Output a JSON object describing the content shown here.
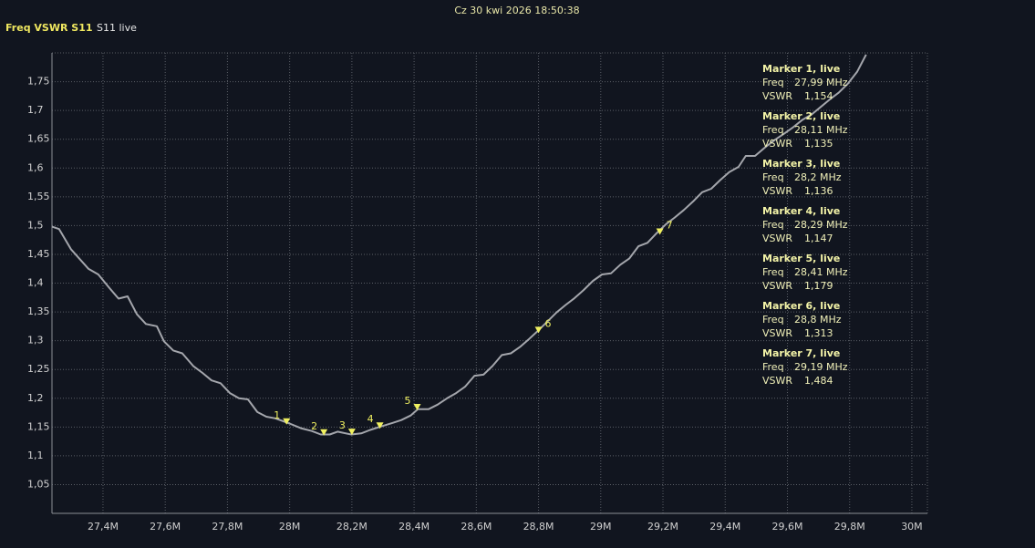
{
  "header": {
    "datetime": "Cz 30 kwi 2026 18:50:38"
  },
  "chart_data": {
    "type": "line",
    "title": "Freq VSWR S11",
    "subtitle": "S11 live",
    "xlim": [
      27.236,
      30.05
    ],
    "ylim": [
      1.0,
      1.8
    ],
    "xticks": [
      {
        "value": 27.4,
        "label": "27,4M"
      },
      {
        "value": 27.6,
        "label": "27,6M"
      },
      {
        "value": 27.8,
        "label": "27,8M"
      },
      {
        "value": 28,
        "label": "28M"
      },
      {
        "value": 28.2,
        "label": "28,2M"
      },
      {
        "value": 28.4,
        "label": "28,4M"
      },
      {
        "value": 28.6,
        "label": "28,6M"
      },
      {
        "value": 28.8,
        "label": "28,8M"
      },
      {
        "value": 29,
        "label": "29M"
      },
      {
        "value": 29.2,
        "label": "29,2M"
      },
      {
        "value": 29.4,
        "label": "29,4M"
      },
      {
        "value": 29.6,
        "label": "29,6M"
      },
      {
        "value": 29.8,
        "label": "29,8M"
      },
      {
        "value": 30,
        "label": "30M"
      }
    ],
    "yticks": [
      {
        "value": 1.05,
        "label": "1,05"
      },
      {
        "value": 1.1,
        "label": "1,1"
      },
      {
        "value": 1.15,
        "label": "1,15"
      },
      {
        "value": 1.2,
        "label": "1,2"
      },
      {
        "value": 1.25,
        "label": "1,25"
      },
      {
        "value": 1.3,
        "label": "1,3"
      },
      {
        "value": 1.35,
        "label": "1,35"
      },
      {
        "value": 1.4,
        "label": "1,4"
      },
      {
        "value": 1.45,
        "label": "1,45"
      },
      {
        "value": 1.5,
        "label": "1,5"
      },
      {
        "value": 1.55,
        "label": "1,55"
      },
      {
        "value": 1.6,
        "label": "1,6"
      },
      {
        "value": 1.65,
        "label": "1,65"
      },
      {
        "value": 1.7,
        "label": "1,7"
      },
      {
        "value": 1.75,
        "label": "1,75"
      }
    ],
    "grid": true,
    "x": [
      27.236,
      27.259,
      27.297,
      27.353,
      27.385,
      27.42,
      27.45,
      27.479,
      27.509,
      27.538,
      27.573,
      27.596,
      27.626,
      27.655,
      27.69,
      27.72,
      27.749,
      27.778,
      27.808,
      27.837,
      27.866,
      27.896,
      27.925,
      27.954,
      28.0,
      28.036,
      28.071,
      28.1,
      28.129,
      28.154,
      28.198,
      28.23,
      28.259,
      28.294,
      28.33,
      28.359,
      28.389,
      28.412,
      28.447,
      28.476,
      28.506,
      28.535,
      28.564,
      28.594,
      28.623,
      28.652,
      28.682,
      28.711,
      28.74,
      28.77,
      28.802,
      28.828,
      28.858,
      28.887,
      28.916,
      28.945,
      28.975,
      29.004,
      29.033,
      29.063,
      29.092,
      29.121,
      29.15,
      29.18,
      29.209,
      29.238,
      29.267,
      29.297,
      29.326,
      29.355,
      29.384,
      29.413,
      29.443,
      29.466,
      29.496,
      29.531,
      29.56,
      29.59,
      29.619,
      29.649,
      29.678,
      29.707,
      29.736,
      29.765,
      29.795,
      29.824,
      29.853
    ],
    "series": [
      {
        "name": "S11",
        "color": "#a4a6ac",
        "values": [
          1.498,
          1.494,
          1.459,
          1.425,
          1.415,
          1.392,
          1.373,
          1.377,
          1.346,
          1.329,
          1.325,
          1.299,
          1.283,
          1.278,
          1.256,
          1.244,
          1.231,
          1.226,
          1.209,
          1.2,
          1.198,
          1.176,
          1.168,
          1.165,
          1.156,
          1.148,
          1.143,
          1.137,
          1.137,
          1.142,
          1.137,
          1.139,
          1.145,
          1.151,
          1.157,
          1.162,
          1.17,
          1.181,
          1.181,
          1.189,
          1.2,
          1.209,
          1.22,
          1.239,
          1.241,
          1.256,
          1.275,
          1.278,
          1.289,
          1.303,
          1.319,
          1.333,
          1.349,
          1.362,
          1.374,
          1.388,
          1.404,
          1.415,
          1.417,
          1.432,
          1.443,
          1.464,
          1.47,
          1.487,
          1.502,
          1.514,
          1.527,
          1.542,
          1.558,
          1.564,
          1.579,
          1.593,
          1.602,
          1.621,
          1.621,
          1.637,
          1.649,
          1.66,
          1.671,
          1.684,
          1.693,
          1.706,
          1.719,
          1.731,
          1.747,
          1.767,
          1.797
        ]
      }
    ],
    "marker_color": "#f0f060",
    "freq_label": "Freq",
    "vswr_label": "VSWR",
    "markers": [
      {
        "label": "1",
        "title": "Marker 1, live",
        "freq": {
          "value": 27.99,
          "label": "27,99 MHz"
        },
        "vswr": {
          "value": 1.154,
          "label": "1,154"
        }
      },
      {
        "label": "2",
        "title": "Marker 2, live",
        "freq": {
          "value": 28.11,
          "label": "28,11 MHz"
        },
        "vswr": {
          "value": 1.135,
          "label": "1,135"
        }
      },
      {
        "label": "3",
        "title": "Marker 3, live",
        "freq": {
          "value": 28.2,
          "label": "28,2 MHz"
        },
        "vswr": {
          "value": 1.136,
          "label": "1,136"
        }
      },
      {
        "label": "4",
        "title": "Marker 4, live",
        "freq": {
          "value": 28.29,
          "label": "28,29 MHz"
        },
        "vswr": {
          "value": 1.147,
          "label": "1,147"
        }
      },
      {
        "label": "5",
        "title": "Marker 5, live",
        "freq": {
          "value": 28.41,
          "label": "28,41 MHz"
        },
        "vswr": {
          "value": 1.179,
          "label": "1,179"
        }
      },
      {
        "label": "6",
        "title": "Marker 6, live",
        "freq": {
          "value": 28.8,
          "label": "28,8 MHz"
        },
        "vswr": {
          "value": 1.313,
          "label": "1,313"
        }
      },
      {
        "label": "7",
        "title": "Marker 7, live",
        "freq": {
          "value": 29.19,
          "label": "29,19 MHz"
        },
        "vswr": {
          "value": 1.484,
          "label": "1,484"
        }
      }
    ]
  }
}
